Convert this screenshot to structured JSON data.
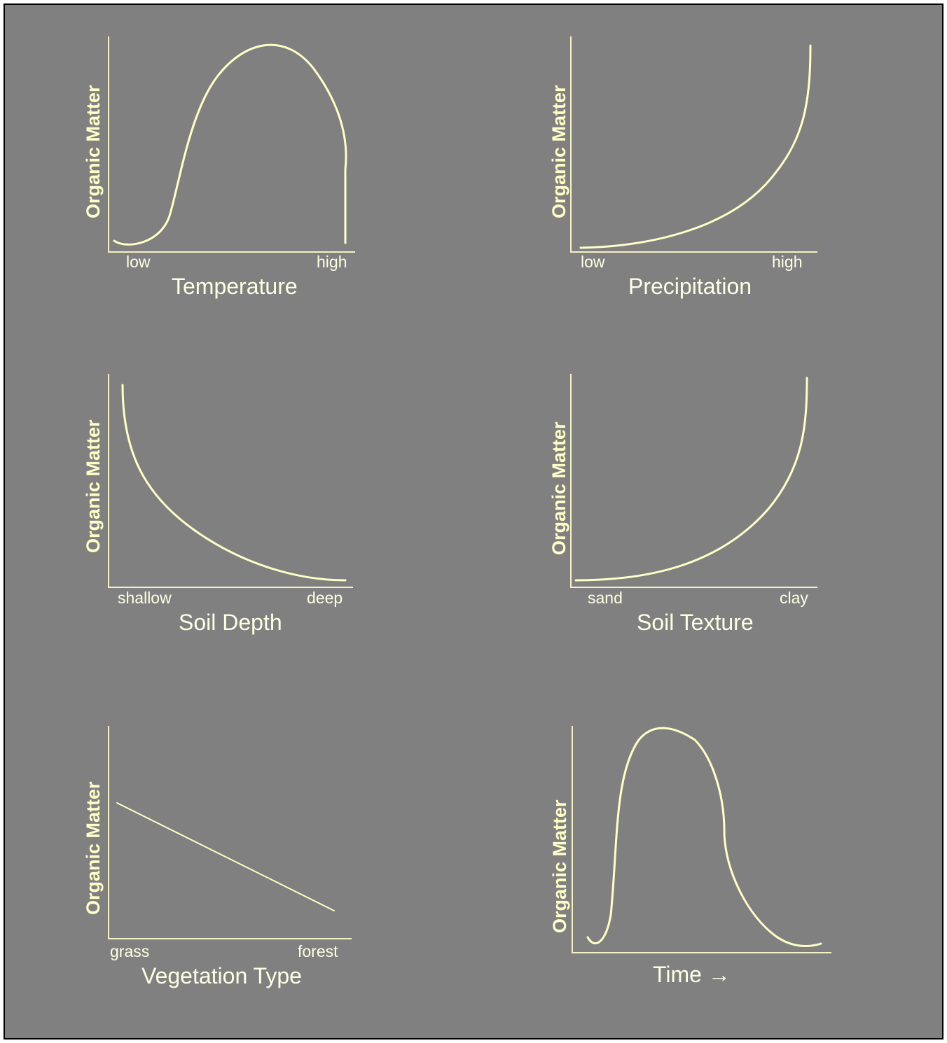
{
  "colors": {
    "background": "#808080",
    "curve": "#ffffc8",
    "text": "#ffffe6",
    "border": "#000000"
  },
  "chart_data": [
    {
      "type": "line",
      "ylabel": "Organic Matter",
      "xlabel": "Temperature",
      "x_tick_labels": [
        "low",
        "high"
      ],
      "x": [
        0.02,
        0.2,
        0.65,
        1.0
      ],
      "y": [
        0.04,
        0.18,
        1.0,
        0.4
      ]
    },
    {
      "type": "line",
      "ylabel": "Organic Matter",
      "xlabel": "Precipitation",
      "x_tick_labels": [
        "low",
        "high"
      ],
      "x": [
        0.0,
        0.5,
        1.0
      ],
      "y": [
        0.02,
        0.2,
        0.98
      ]
    },
    {
      "type": "line",
      "ylabel": "Organic Matter",
      "xlabel": "Soil Depth",
      "x_tick_labels": [
        "shallow",
        "deep"
      ],
      "x": [
        0.05,
        0.5,
        1.0
      ],
      "y": [
        0.96,
        0.2,
        0.03
      ]
    },
    {
      "type": "line",
      "ylabel": "Organic Matter",
      "xlabel": "Soil Texture",
      "x_tick_labels": [
        "sand",
        "clay"
      ],
      "x": [
        0.0,
        0.5,
        1.0
      ],
      "y": [
        0.03,
        0.2,
        0.98
      ]
    },
    {
      "type": "line",
      "ylabel": "Organic Matter",
      "xlabel": "Vegetation Type",
      "x_tick_labels": [
        "grass",
        "forest"
      ],
      "x": [
        0.0,
        1.0
      ],
      "y": [
        0.65,
        0.14
      ]
    },
    {
      "type": "line",
      "ylabel": "Organic Matter",
      "xlabel": "Time →",
      "x_tick_labels": [],
      "x": [
        0.06,
        0.33,
        1.0
      ],
      "y": [
        0.05,
        1.0,
        0.04
      ]
    }
  ]
}
